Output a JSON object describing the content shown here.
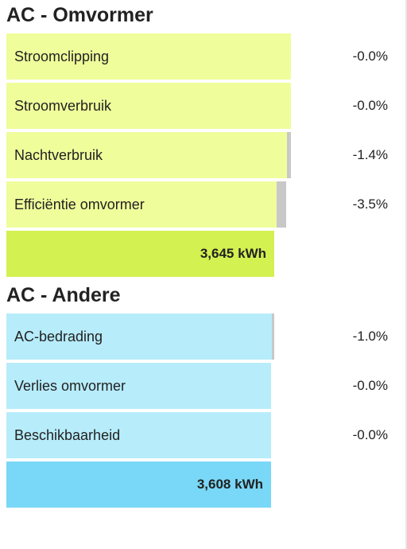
{
  "sections": [
    {
      "title": "AC - Omvormer",
      "rows": [
        {
          "label": "Stroomclipping",
          "pct": "-0.0%",
          "loss_fraction": 0.0
        },
        {
          "label": "Stroomverbruik",
          "pct": "-0.0%",
          "loss_fraction": 0.0
        },
        {
          "label": "Nachtverbruik",
          "pct": "-1.4%",
          "loss_fraction": 0.014
        },
        {
          "label": "Efficiëntie omvormer",
          "pct": "-3.5%",
          "loss_fraction": 0.035
        }
      ],
      "total": "3,645 kWh"
    },
    {
      "title": "AC - Andere",
      "rows": [
        {
          "label": "AC-bedrading",
          "pct": "-1.0%",
          "loss_fraction": 0.01
        },
        {
          "label": "Verlies omvormer",
          "pct": "-0.0%",
          "loss_fraction": 0.0
        },
        {
          "label": "Beschikbaarheid",
          "pct": "-0.0%",
          "loss_fraction": 0.0
        }
      ],
      "total": "3,608 kWh"
    }
  ],
  "colors": {
    "omvormer_bar": "#f0fd9b",
    "omvormer_total": "#d3f150",
    "andere_bar": "#b7ecfb",
    "andere_total": "#79d8f7",
    "loss_strip": "#c8c8c8"
  }
}
